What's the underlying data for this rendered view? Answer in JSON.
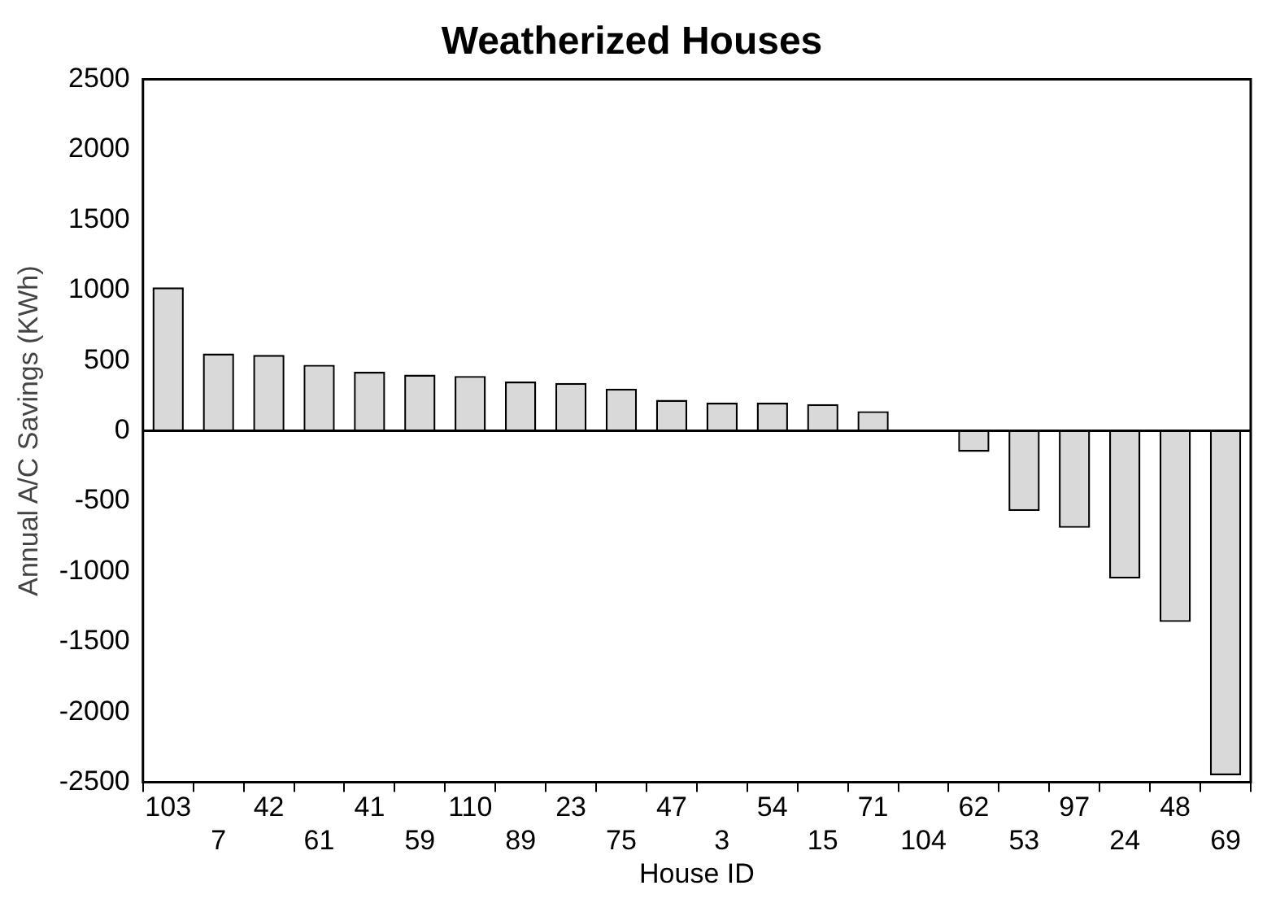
{
  "chart_data": {
    "type": "bar",
    "title": "Weatherized Houses",
    "xlabel": "House ID",
    "ylabel": "Annual A/C Savings (KWh)",
    "categories": [
      "103",
      "7",
      "42",
      "61",
      "41",
      "59",
      "110",
      "89",
      "23",
      "75",
      "47",
      "3",
      "54",
      "15",
      "71",
      "104",
      "62",
      "53",
      "97",
      "24",
      "48",
      "69"
    ],
    "values": [
      1020,
      550,
      540,
      470,
      420,
      400,
      390,
      350,
      340,
      300,
      220,
      200,
      200,
      190,
      140,
      0,
      -150,
      -570,
      -690,
      -1050,
      -1360,
      -2450
    ],
    "color": "#d9d9d9",
    "ylim": [
      -2500,
      2500
    ],
    "yticks": [
      -2500,
      -2000,
      -1500,
      -1000,
      -500,
      0,
      500,
      1000,
      1500,
      2000,
      2500
    ],
    "legend": false
  }
}
